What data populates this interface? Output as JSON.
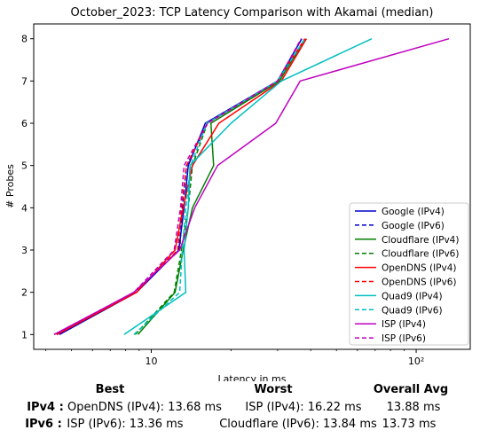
{
  "chart_data": {
    "type": "line",
    "title": "October_2023: TCP Latency Comparison with Akamai (median)",
    "xlabel": "Latency in ms",
    "ylabel": "# Probes",
    "xscale": "log",
    "xlim": [
      3.6,
      160
    ],
    "ylim": [
      0.65,
      8.35
    ],
    "x_ticks": [
      {
        "value": 10,
        "label": "10"
      },
      {
        "value": 100,
        "label": "10²"
      }
    ],
    "y_ticks": [
      1,
      2,
      3,
      4,
      5,
      6,
      7,
      8
    ],
    "grid": false,
    "legend_position": "lower right",
    "series": [
      {
        "name": "Google (IPv4)",
        "color": "#0000cc",
        "dash": "solid",
        "x": [
          4.5,
          8.8,
          12.7,
          13.3,
          13.8,
          16.0,
          30.0,
          37.0
        ],
        "y": [
          1,
          2,
          3,
          4,
          5,
          6,
          7,
          8
        ]
      },
      {
        "name": "Google (IPv6)",
        "color": "#0000cc",
        "dash": "dashed",
        "x": [
          4.4,
          8.6,
          12.8,
          13.1,
          13.6,
          16.3,
          30.0,
          37.0
        ],
        "y": [
          1,
          2,
          3,
          4,
          5,
          6,
          7,
          8
        ]
      },
      {
        "name": "Cloudflare (IPv4)",
        "color": "#008000",
        "dash": "solid",
        "x": [
          8.9,
          12.3,
          13.2,
          14.3,
          17.2,
          16.8,
          30.5,
          38.0
        ],
        "y": [
          1,
          2,
          3,
          4,
          5,
          6,
          7,
          8
        ]
      },
      {
        "name": "Cloudflare (IPv6)",
        "color": "#008000",
        "dash": "dashed",
        "x": [
          8.7,
          12.2,
          13.0,
          13.8,
          14.3,
          16.3,
          30.2,
          38.5
        ],
        "y": [
          1,
          2,
          3,
          4,
          5,
          6,
          7,
          8
        ]
      },
      {
        "name": "OpenDNS (IPv4)",
        "color": "#ff0000",
        "dash": "solid",
        "x": [
          4.4,
          8.8,
          12.3,
          13.2,
          14.3,
          18.0,
          31.0,
          38.5
        ],
        "y": [
          1,
          2,
          3,
          4,
          5,
          6,
          7,
          8
        ]
      },
      {
        "name": "OpenDNS (IPv6)",
        "color": "#ff0000",
        "dash": "dashed",
        "x": [
          4.4,
          8.7,
          12.6,
          13.0,
          13.6,
          16.3,
          30.0,
          38.0
        ],
        "y": [
          1,
          2,
          3,
          4,
          5,
          6,
          7,
          8
        ]
      },
      {
        "name": "Quad9 (IPv4)",
        "color": "#00bfbf",
        "dash": "solid",
        "x": [
          7.9,
          13.5,
          13.3,
          13.8,
          14.0,
          20.0,
          31.0,
          68.0
        ],
        "y": [
          1,
          2,
          3,
          4,
          5,
          6,
          7,
          8
        ]
      },
      {
        "name": "Quad9 (IPv6)",
        "color": "#00bfbf",
        "dash": "dashed",
        "x": [
          8.6,
          12.8,
          13.1,
          13.5,
          14.1,
          16.2,
          30.0,
          38.0
        ],
        "y": [
          1,
          2,
          3,
          4,
          5,
          6,
          7,
          8
        ]
      },
      {
        "name": "ISP (IPv4)",
        "color": "#bf00bf",
        "dash": "solid",
        "x": [
          4.3,
          8.6,
          12.8,
          14.6,
          17.8,
          29.5,
          36.5,
          133.0
        ],
        "y": [
          1,
          2,
          3,
          4,
          5,
          6,
          7,
          8
        ]
      },
      {
        "name": "ISP (IPv6)",
        "color": "#bf00bf",
        "dash": "dashed",
        "x": [
          4.3,
          8.6,
          12.2,
          12.9,
          13.3,
          16.3,
          30.0,
          36.8
        ],
        "y": [
          1,
          2,
          3,
          4,
          5,
          6,
          7,
          8
        ]
      }
    ]
  },
  "summary": {
    "headers": {
      "best": "Best",
      "worst": "Worst",
      "avg": "Overall Avg"
    },
    "rows": [
      {
        "label": "IPv4 :",
        "best": "OpenDNS (IPv4): 13.68 ms",
        "worst": "ISP (IPv4): 16.22 ms",
        "avg": "13.88 ms"
      },
      {
        "label": "IPv6 :",
        "best": "ISP (IPv6): 13.36 ms",
        "worst": "Cloudflare (IPv6): 13.84 ms",
        "avg": "13.73 ms"
      }
    ]
  }
}
